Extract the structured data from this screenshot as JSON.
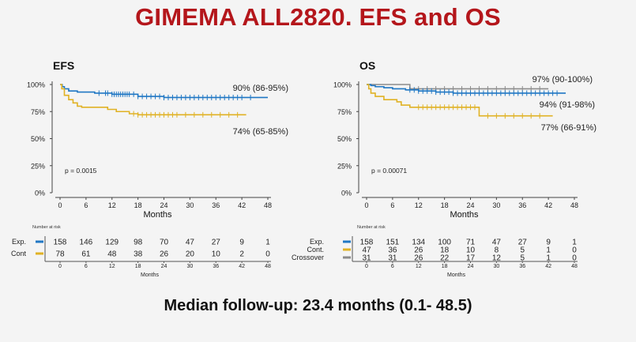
{
  "slide": {
    "title": "GIMEMA ALL2820. EFS and OS",
    "footer": "Median follow-up: 23.4 months (0.1- 48.5)"
  },
  "colors": {
    "blue": "#1f77c4",
    "yellow": "#e0b224",
    "gray": "#8c8c8c"
  },
  "chart_data": [
    {
      "type": "line",
      "chart_kind": "kaplan-meier",
      "title": "EFS",
      "xlabel": "Months",
      "ylabel": "",
      "xlim": [
        0,
        48
      ],
      "ylim": [
        0,
        100
      ],
      "x_ticks": [
        0,
        6,
        12,
        18,
        24,
        30,
        36,
        42,
        48
      ],
      "y_ticks": [
        "0%",
        "25%",
        "50%",
        "75%",
        "100%"
      ],
      "p_value": "p = 0.0015",
      "series": [
        {
          "name": "Exp.",
          "color": "#1f77c4",
          "annotation": "90% (86-95%)",
          "steps": [
            [
              0,
              100
            ],
            [
              0.5,
              98
            ],
            [
              1,
              96
            ],
            [
              2,
              94
            ],
            [
              4,
              93
            ],
            [
              8,
              92
            ],
            [
              12,
              91
            ],
            [
              18,
              89
            ],
            [
              24,
              88
            ],
            [
              48,
              88
            ]
          ],
          "censor": [
            9,
            10.5,
            11,
            12,
            12.5,
            13,
            13.5,
            14,
            14.5,
            15,
            15.5,
            16,
            17,
            18,
            19,
            20,
            21,
            22,
            23,
            24,
            25,
            26,
            27,
            28,
            29,
            30,
            31,
            32,
            33,
            34,
            35,
            36,
            37,
            38,
            39,
            40,
            41,
            42,
            44
          ]
        },
        {
          "name": "Cont",
          "color": "#e0b224",
          "annotation": "74% (65-85%)",
          "steps": [
            [
              0,
              100
            ],
            [
              0.4,
              96
            ],
            [
              1,
              90
            ],
            [
              2,
              86
            ],
            [
              3,
              83
            ],
            [
              4,
              80
            ],
            [
              5,
              79
            ],
            [
              11,
              77
            ],
            [
              13,
              75
            ],
            [
              16,
              73
            ],
            [
              18,
              72
            ],
            [
              43,
              72
            ]
          ],
          "censor": [
            17,
            18,
            19,
            20,
            21,
            22,
            23,
            24,
            25,
            26,
            27,
            29,
            31,
            33,
            35,
            37,
            39,
            41
          ]
        }
      ],
      "risk_table": {
        "header": "Number at risk",
        "xlabel": "Months",
        "rows": [
          {
            "label": "Exp.",
            "color": "#1f77c4",
            "values": [
              "158",
              "146",
              "129",
              "98",
              "70",
              "47",
              "27",
              "9",
              "1"
            ]
          },
          {
            "label": "Cont",
            "color": "#e0b224",
            "values": [
              "78",
              "61",
              "48",
              "38",
              "26",
              "20",
              "10",
              "2",
              "0"
            ]
          }
        ]
      }
    },
    {
      "type": "line",
      "chart_kind": "kaplan-meier",
      "title": "OS",
      "xlabel": "Months",
      "ylabel": "",
      "xlim": [
        0,
        48
      ],
      "ylim": [
        0,
        100
      ],
      "x_ticks": [
        0,
        6,
        12,
        18,
        24,
        30,
        36,
        42,
        48
      ],
      "y_ticks": [
        "0%",
        "25%",
        "50%",
        "75%",
        "100%"
      ],
      "p_value": "p = 0.00071",
      "series": [
        {
          "name": "Exp.",
          "color": "#1f77c4",
          "annotation": "94% (91-98%)",
          "steps": [
            [
              0,
              100
            ],
            [
              1,
              99
            ],
            [
              2,
              98
            ],
            [
              4,
              97
            ],
            [
              6,
              96
            ],
            [
              9,
              95
            ],
            [
              12,
              94
            ],
            [
              16,
              93
            ],
            [
              20,
              92
            ],
            [
              46,
              92
            ]
          ],
          "censor": [
            10,
            11,
            12,
            13,
            14,
            15,
            16,
            17,
            18,
            19,
            20,
            21,
            22,
            23,
            24,
            25,
            26,
            27,
            28,
            29,
            30,
            31,
            32,
            33,
            34,
            35,
            36,
            37,
            38,
            39,
            40,
            41,
            42,
            43,
            44
          ]
        },
        {
          "name": "Cont.",
          "color": "#e0b224",
          "annotation": "77% (66-91%)",
          "steps": [
            [
              0,
              100
            ],
            [
              0.5,
              96
            ],
            [
              1,
              92
            ],
            [
              2,
              89
            ],
            [
              4,
              86
            ],
            [
              7,
              84
            ],
            [
              8,
              81
            ],
            [
              10,
              79
            ],
            [
              26,
              71
            ],
            [
              43,
              71
            ]
          ],
          "censor": [
            12,
            13,
            14,
            15,
            16,
            17,
            18,
            19,
            20,
            21,
            22,
            23,
            24,
            25,
            28,
            30,
            32,
            34,
            36,
            38,
            40
          ]
        },
        {
          "name": "Crossover",
          "color": "#8c8c8c",
          "annotation": "97% (90-100%)",
          "steps": [
            [
              0,
              100
            ],
            [
              10,
              96
            ],
            [
              42,
              96
            ]
          ],
          "censor": [
            12,
            14,
            16,
            18,
            20,
            22,
            24,
            26,
            28,
            30,
            32,
            34,
            36,
            38,
            40
          ]
        }
      ],
      "risk_table": {
        "header": "Number at risk",
        "xlabel": "Months",
        "rows": [
          {
            "label": "Exp.",
            "color": "#1f77c4",
            "values": [
              "158",
              "151",
              "134",
              "100",
              "71",
              "47",
              "27",
              "9",
              "1"
            ]
          },
          {
            "label": "Cont.",
            "color": "#e0b224",
            "values": [
              "47",
              "36",
              "26",
              "18",
              "10",
              "8",
              "5",
              "1",
              "0"
            ]
          },
          {
            "label": "Crossover",
            "color": "#8c8c8c",
            "values": [
              "31",
              "31",
              "26",
              "22",
              "17",
              "12",
              "5",
              "1",
              "0"
            ]
          }
        ]
      }
    }
  ]
}
